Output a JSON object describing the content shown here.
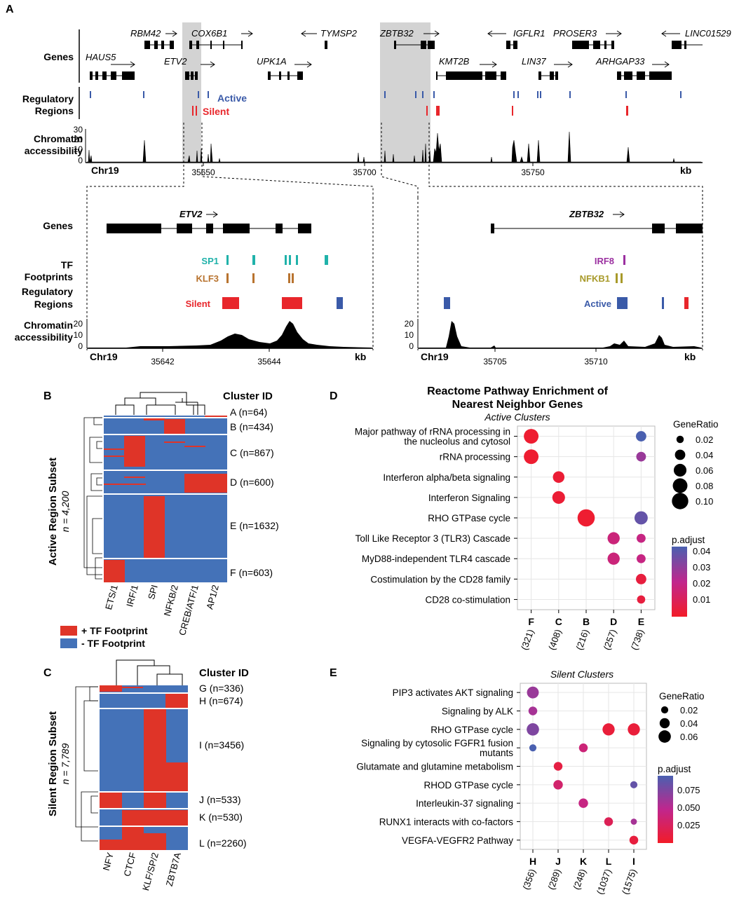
{
  "colors": {
    "active": "#3a5aa8",
    "silent": "#e8262b",
    "heat_pos": "#df3428",
    "heat_neg": "#4472b8",
    "sp1": "#20b2aa",
    "klf3": "#b8732f",
    "irf8": "#9b30a0",
    "nfkb1": "#a89a2a",
    "highlight": "#d3d3d3"
  },
  "panel_a": {
    "letter": "A",
    "row_genes": "Genes",
    "row_regulatory_1": "Regulatory",
    "row_regulatory_2": "Regions",
    "row_chromatin_1": "Chromatin",
    "row_chromatin_2": "accessibility",
    "legend_active": "Active",
    "legend_silent": "Silent",
    "chr": "Chr19",
    "unit": "kb",
    "x_ticks": [
      "35650",
      "35700",
      "35750"
    ],
    "y_ticks": [
      "30",
      "20",
      "10",
      "0"
    ],
    "genes": [
      "RBM42",
      "COX6B1",
      "TYMSP2",
      "ZBTB32",
      "IGFLR1",
      "PROSER3",
      "LINC01529",
      "HAUS5",
      "ETV2",
      "UPK1A",
      "KMT2B",
      "LIN37",
      "ARHGAP33"
    ],
    "zoom_left": {
      "gene": "ETV2",
      "row_genes": "Genes",
      "row_tf_1": "TF",
      "row_tf_2": "Footprints",
      "row_reg_1": "Regulatory",
      "row_reg_2": "Regions",
      "row_chrom_1": "Chromatin",
      "row_chrom_2": "accessibility",
      "tf1": "SP1",
      "tf2": "KLF3",
      "reg_label": "Silent",
      "chr": "Chr19",
      "unit": "kb",
      "x_ticks": [
        "35642",
        "35644"
      ],
      "y_ticks": [
        "20",
        "10",
        "0"
      ]
    },
    "zoom_right": {
      "gene": "ZBTB32",
      "tf1": "IRF8",
      "tf2": "NFKB1",
      "reg_label": "Active",
      "chr": "Chr19",
      "unit": "kb",
      "x_ticks": [
        "35705",
        "35710"
      ],
      "y_ticks": [
        "20",
        "10",
        "0"
      ]
    }
  },
  "panel_b": {
    "letter": "B",
    "cluster_header": "Cluster ID",
    "side_label": "Active Region Subset",
    "side_n": "n = 4,200",
    "clusters": [
      "A (n=64)",
      "B (n=434)",
      "C (n=867)",
      "D (n=600)",
      "E (n=1632)",
      "F (n=603)"
    ],
    "columns": [
      "ETS/1",
      "IRF/1",
      "SPI",
      "NFKB/2",
      "CREB/ATF/1",
      "AP1/2"
    ],
    "legend_pos": "+ TF Footprint",
    "legend_neg": "- TF Footprint"
  },
  "panel_c": {
    "letter": "C",
    "cluster_header": "Cluster ID",
    "side_label": "Silent Region Subset",
    "side_n": "n = 7,789",
    "clusters": [
      "G (n=336)",
      "H (n=674)",
      "I (n=3456)",
      "J (n=533)",
      "K (n=530)",
      "L (n=2260)"
    ],
    "columns": [
      "NFY",
      "CTCF",
      "KLF/SP/2",
      "ZBTB7A"
    ]
  },
  "panel_d": {
    "letter": "D",
    "title_1": "Reactome Pathway Enrichment of",
    "title_2": "Nearest Neighbor Genes",
    "subtitle": "Active Clusters",
    "size_legend_title": "GeneRatio",
    "size_legend_values": [
      "0.02",
      "0.04",
      "0.06",
      "0.08",
      "0.10"
    ],
    "color_legend_title": "p.adjust",
    "color_legend_values": [
      "0.04",
      "0.03",
      "0.02",
      "0.01"
    ]
  },
  "panel_e": {
    "letter": "E",
    "subtitle": "Silent Clusters",
    "size_legend_title": "GeneRatio",
    "size_legend_values": [
      "0.02",
      "0.04",
      "0.06"
    ],
    "color_legend_title": "p.adjust",
    "color_legend_values": [
      "0.075",
      "0.050",
      "0.025"
    ]
  },
  "chart_data": [
    {
      "type": "scatter",
      "subtitle": "Active Clusters",
      "categories": [
        "F",
        "C",
        "B",
        "D",
        "E"
      ],
      "category_counts": [
        "(321)",
        "(408)",
        "(216)",
        "(257)",
        "(738)"
      ],
      "pathways": [
        "Major pathway of rRNA processing in the nucleolus and cytosol",
        "rRNA processing",
        "Interferon alpha/beta signaling",
        "Interferon Signaling",
        "RHO GTPase cycle",
        "Toll Like Receptor 3 (TLR3) Cascade",
        "MyD88-independent TLR4 cascade",
        "Costimulation by the CD28 family",
        "CD28 co-stimulation"
      ],
      "points": [
        {
          "x": "F",
          "y": "Major pathway of rRNA processing in the nucleolus and cytosol",
          "gene_ratio": 0.08,
          "p_adjust": 0.002
        },
        {
          "x": "E",
          "y": "Major pathway of rRNA processing in the nucleolus and cytosol",
          "gene_ratio": 0.04,
          "p_adjust": 0.045
        },
        {
          "x": "F",
          "y": "rRNA processing",
          "gene_ratio": 0.08,
          "p_adjust": 0.002
        },
        {
          "x": "E",
          "y": "rRNA processing",
          "gene_ratio": 0.035,
          "p_adjust": 0.03
        },
        {
          "x": "C",
          "y": "Interferon alpha/beta signaling",
          "gene_ratio": 0.05,
          "p_adjust": 0.003
        },
        {
          "x": "C",
          "y": "Interferon Signaling",
          "gene_ratio": 0.06,
          "p_adjust": 0.003
        },
        {
          "x": "B",
          "y": "RHO GTPase cycle",
          "gene_ratio": 0.11,
          "p_adjust": 0.002
        },
        {
          "x": "E",
          "y": "RHO GTPase cycle",
          "gene_ratio": 0.065,
          "p_adjust": 0.04
        },
        {
          "x": "D",
          "y": "Toll Like Receptor 3 (TLR3) Cascade",
          "gene_ratio": 0.055,
          "p_adjust": 0.018
        },
        {
          "x": "E",
          "y": "Toll Like Receptor 3 (TLR3) Cascade",
          "gene_ratio": 0.03,
          "p_adjust": 0.02
        },
        {
          "x": "D",
          "y": "MyD88-independent TLR4 cascade",
          "gene_ratio": 0.055,
          "p_adjust": 0.018
        },
        {
          "x": "E",
          "y": "MyD88-independent TLR4 cascade",
          "gene_ratio": 0.03,
          "p_adjust": 0.02
        },
        {
          "x": "E",
          "y": "Costimulation by the CD28 family",
          "gene_ratio": 0.04,
          "p_adjust": 0.005
        },
        {
          "x": "E",
          "y": "CD28 co-stimulation",
          "gene_ratio": 0.025,
          "p_adjust": 0.005
        }
      ],
      "size_legend": [
        0.02,
        0.04,
        0.06,
        0.08,
        0.1
      ],
      "color_range": [
        0.0,
        0.045
      ]
    },
    {
      "type": "scatter",
      "subtitle": "Silent Clusters",
      "categories": [
        "H",
        "J",
        "K",
        "L",
        "I"
      ],
      "category_counts": [
        "(356)",
        "(289)",
        "(248)",
        "(1037)",
        "(1575)"
      ],
      "pathways": [
        "PIP3 activates AKT signaling",
        "Signaling by ALK",
        "RHO GTPase cycle",
        "Signaling by cytosolic FGFR1 fusion mutants",
        "Glutamate and glutamine metabolism",
        "RHOD GTPase cycle",
        "Interleukin-37 signaling",
        "RUNX1 interacts with co-factors",
        "VEGFA-VEGFR2 Pathway"
      ],
      "points": [
        {
          "x": "H",
          "y": "PIP3 activates AKT signaling",
          "gene_ratio": 0.055,
          "p_adjust": 0.06
        },
        {
          "x": "H",
          "y": "Signaling by ALK",
          "gene_ratio": 0.03,
          "p_adjust": 0.055
        },
        {
          "x": "H",
          "y": "RHO GTPase cycle",
          "gene_ratio": 0.06,
          "p_adjust": 0.07
        },
        {
          "x": "L",
          "y": "RHO GTPase cycle",
          "gene_ratio": 0.058,
          "p_adjust": 0.008
        },
        {
          "x": "I",
          "y": "RHO GTPase cycle",
          "gene_ratio": 0.058,
          "p_adjust": 0.008
        },
        {
          "x": "H",
          "y": "Signaling by cytosolic FGFR1 fusion mutants",
          "gene_ratio": 0.02,
          "p_adjust": 0.09
        },
        {
          "x": "K",
          "y": "Signaling by cytosolic FGFR1 fusion mutants",
          "gene_ratio": 0.03,
          "p_adjust": 0.035
        },
        {
          "x": "J",
          "y": "Glutamate and glutamine metabolism",
          "gene_ratio": 0.03,
          "p_adjust": 0.012
        },
        {
          "x": "J",
          "y": "RHOD GTPase cycle",
          "gene_ratio": 0.035,
          "p_adjust": 0.03
        },
        {
          "x": "I",
          "y": "RHOD GTPase cycle",
          "gene_ratio": 0.02,
          "p_adjust": 0.08
        },
        {
          "x": "K",
          "y": "Interleukin-37 signaling",
          "gene_ratio": 0.035,
          "p_adjust": 0.04
        },
        {
          "x": "L",
          "y": "RUNX1 interacts with co-factors",
          "gene_ratio": 0.03,
          "p_adjust": 0.02
        },
        {
          "x": "I",
          "y": "RUNX1 interacts with co-factors",
          "gene_ratio": 0.015,
          "p_adjust": 0.055
        },
        {
          "x": "I",
          "y": "VEGFA-VEGFR2 Pathway",
          "gene_ratio": 0.03,
          "p_adjust": 0.01
        }
      ],
      "size_legend": [
        0.02,
        0.04,
        0.06
      ],
      "color_range": [
        0.0,
        0.09
      ]
    }
  ]
}
